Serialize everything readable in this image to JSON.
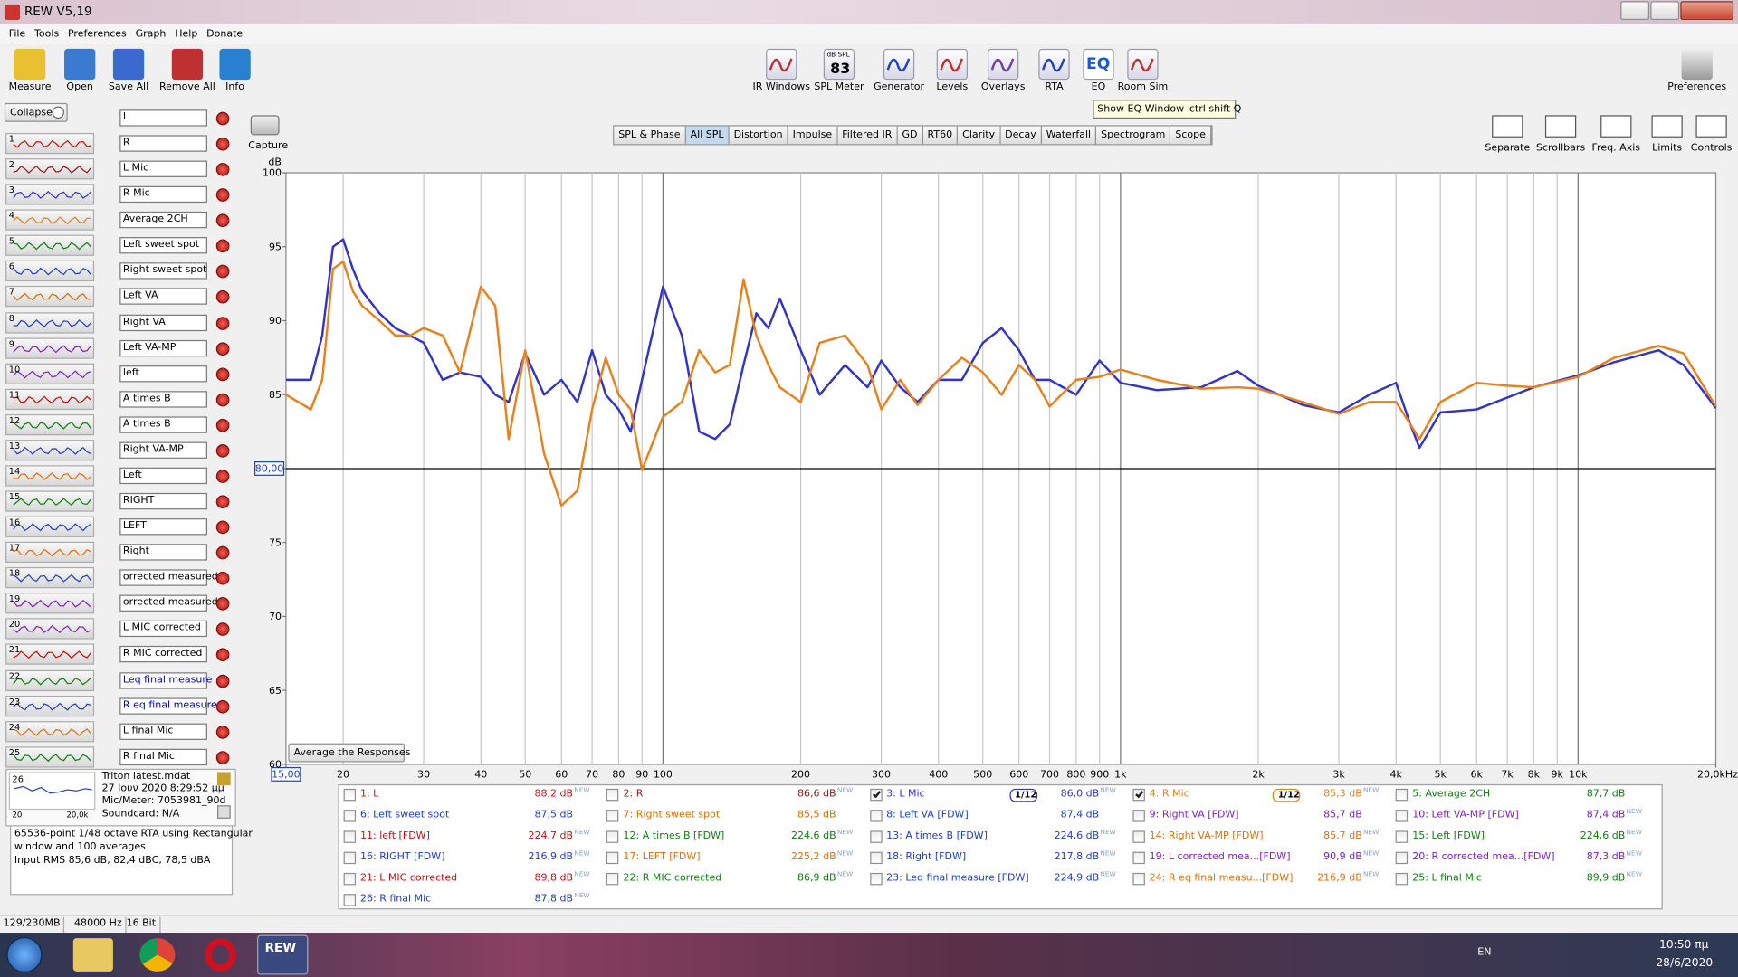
{
  "window": {
    "title": "REW V5,19"
  },
  "menu": [
    "File",
    "Tools",
    "Preferences",
    "Graph",
    "Help",
    "Donate"
  ],
  "toolbar": {
    "left": [
      "Measure",
      "Open",
      "Save All",
      "Remove All",
      "Info"
    ],
    "center": [
      "IR Windows",
      "SPL Meter",
      "Generator",
      "Levels",
      "Overlays",
      "RTA",
      "EQ",
      "Room Sim"
    ],
    "right": "Preferences",
    "spl_icon": {
      "unit": "dB SPL",
      "reading": "83"
    },
    "eq_icon": "EQ",
    "tooltip": {
      "text": "Show EQ Window",
      "shortcut": "ctrl shift Q"
    }
  },
  "sidebar": {
    "collapse": "Collapse",
    "measurements": [
      {
        "number": 1,
        "name": "L"
      },
      {
        "number": 2,
        "name": "R"
      },
      {
        "number": 3,
        "name": "L Mic"
      },
      {
        "number": 4,
        "name": "R Mic"
      },
      {
        "number": 5,
        "name": "Average 2CH"
      },
      {
        "number": 6,
        "name": "Left  sweet spot"
      },
      {
        "number": 7,
        "name": "Right sweet spot"
      },
      {
        "number": 8,
        "name": "Left VA"
      },
      {
        "number": 9,
        "name": "Right VA"
      },
      {
        "number": 10,
        "name": "Left VA-MP"
      },
      {
        "number": 11,
        "name": "left"
      },
      {
        "number": 12,
        "name": "A times B"
      },
      {
        "number": 13,
        "name": "A times B"
      },
      {
        "number": 14,
        "name": "Right VA-MP"
      },
      {
        "number": 15,
        "name": "Left"
      },
      {
        "number": 16,
        "name": "RIGHT"
      },
      {
        "number": 17,
        "name": "LEFT"
      },
      {
        "number": 18,
        "name": "Right"
      },
      {
        "number": 19,
        "name": "orrected measured"
      },
      {
        "number": 20,
        "name": "orrected measured"
      },
      {
        "number": 21,
        "name": "L MIC corrected"
      },
      {
        "number": 22,
        "name": "R MIC corrected"
      },
      {
        "number": 23,
        "name": "Leq final measure"
      },
      {
        "number": 24,
        "name": "R eq final measure"
      },
      {
        "number": 25,
        "name": "L final Mic"
      },
      {
        "number": 26,
        "name": "R final Mic"
      }
    ],
    "selected": {
      "file": "Triton latest.mdat",
      "date": "27 Ιουν 2020 8:29:52 μμ",
      "mic": "Mic/Meter: 7053981_90d",
      "soundcard": "Soundcard: N/A",
      "axis_start": "20",
      "axis_end": "20,0k"
    },
    "notes": [
      "65536-point 1/48 octave RTA using Rectangular",
      "window and 100 averages",
      "Input RMS 85,6 dB, 82,4 dBC, 78,5 dBA"
    ]
  },
  "graph": {
    "capture": "Capture",
    "tabs": [
      "SPL & Phase",
      "All SPL",
      "Distortion",
      "Impulse",
      "Filtered IR",
      "GD",
      "RT60",
      "Clarity",
      "Decay",
      "Waterfall",
      "Spectrogram",
      "Scope"
    ],
    "active_tab": 1,
    "controls": [
      "Separate",
      "Scrollbars",
      "Freq. Axis",
      "Limits",
      "Controls"
    ],
    "average_button": "Average the Responses"
  },
  "chart_data": {
    "type": "line",
    "y_unit": "dB",
    "xscale": "log",
    "x": [
      15,
      17,
      18,
      19,
      20,
      21,
      22,
      24,
      26,
      28,
      30,
      33,
      36,
      40,
      43,
      46,
      50,
      55,
      60,
      65,
      70,
      75,
      80,
      85,
      90,
      100,
      110,
      120,
      130,
      140,
      150,
      160,
      170,
      180,
      200,
      220,
      250,
      280,
      300,
      330,
      360,
      400,
      450,
      500,
      550,
      600,
      650,
      700,
      800,
      900,
      1000,
      1200,
      1500,
      1800,
      2000,
      2500,
      3000,
      3500,
      4000,
      4300,
      4500,
      5000,
      6000,
      7000,
      8000,
      10000,
      12000,
      15000,
      17000,
      20000
    ],
    "series": [
      {
        "name": "3: L Mic",
        "color": "#3232cc",
        "values": [
          86.0,
          86.0,
          89,
          95,
          95.5,
          93.5,
          92,
          90.5,
          89.5,
          89,
          88.5,
          86,
          86.5,
          86.2,
          85,
          84.5,
          87.8,
          85,
          86,
          84.5,
          88,
          85,
          84,
          82.5,
          86,
          92.3,
          89,
          82.5,
          82,
          83,
          87,
          90.5,
          89.5,
          91.5,
          88,
          85,
          87,
          85.5,
          87.3,
          85.5,
          84.5,
          86,
          86,
          88.5,
          89.5,
          88,
          86,
          86,
          85,
          87.3,
          85.8,
          85.3,
          85.5,
          86.6,
          85.6,
          84.3,
          83.8,
          85,
          85.8,
          83,
          81.4,
          83.8,
          84,
          84.8,
          85.5,
          86.3,
          87.2,
          88,
          87,
          84.1
        ]
      },
      {
        "name": "4: R Mic",
        "color": "#e8801c",
        "values": [
          85,
          84,
          86,
          93.5,
          94,
          92,
          91,
          90,
          89,
          89,
          89.5,
          89,
          86.5,
          92.3,
          91,
          82,
          88,
          81,
          77.5,
          78.5,
          84,
          87.5,
          85,
          84,
          79.9,
          83.5,
          84.5,
          88,
          86.5,
          87,
          92.8,
          89,
          87,
          85.5,
          84.5,
          88.5,
          89,
          87,
          84,
          86,
          84.3,
          86,
          87.5,
          86.5,
          85,
          87,
          86,
          84.2,
          86,
          86.2,
          86.7,
          86,
          85.4,
          85.5,
          85.4,
          84.5,
          83.7,
          84.5,
          84.5,
          83,
          82,
          84.5,
          85.8,
          85.6,
          85.5,
          86.2,
          87.5,
          88.3,
          87.8,
          84.2
        ]
      }
    ],
    "xlim": [
      15,
      20000
    ],
    "ylim": [
      60,
      100
    ],
    "xticks": [
      {
        "value": 15,
        "label": "15,00"
      },
      20,
      30,
      40,
      50,
      60,
      70,
      80,
      90,
      100,
      200,
      300,
      400,
      500,
      600,
      700,
      800,
      900,
      {
        "value": 1000,
        "label": "1k"
      },
      {
        "value": 2000,
        "label": "2k"
      },
      {
        "value": 3000,
        "label": "3k"
      },
      {
        "value": 4000,
        "label": "4k"
      },
      {
        "value": 5000,
        "label": "5k"
      },
      {
        "value": 6000,
        "label": "6k"
      },
      {
        "value": 7000,
        "label": "7k"
      },
      {
        "value": 8000,
        "label": "8k"
      },
      {
        "value": 9000,
        "label": "9k"
      },
      {
        "value": 10000,
        "label": "10k"
      },
      {
        "value": 20000,
        "label": "20,0kHz"
      }
    ],
    "yticks": [
      60,
      65,
      70,
      75,
      80,
      85,
      90,
      95,
      100
    ],
    "vertical_grid": true,
    "reference_line": {
      "value": 80,
      "label": "80,00"
    }
  },
  "legend": {
    "new_badge": "NEW",
    "entries": [
      {
        "name": "1: L",
        "value": "88,2 dB",
        "new": true,
        "color": "#d01010"
      },
      {
        "name": "2: R",
        "value": "86,6 dB",
        "new": true,
        "color": "#8b1a1a"
      },
      {
        "series": 0,
        "checked": true,
        "smoothing": "1/12",
        "value": "86,0 dB",
        "new": true
      },
      {
        "series": 1,
        "checked": true,
        "smoothing": "1/12",
        "value": "85,3 dB",
        "new": true
      },
      {
        "name": "5: Average 2CH",
        "value": "87,7 dB",
        "new": false,
        "color": "#108010"
      },
      {
        "name": "6: Left  sweet spot",
        "value": "87,5 dB",
        "new": false,
        "color": "#2040c0"
      },
      {
        "name": "7: Right sweet spot",
        "value": "85,5 dB",
        "new": false,
        "color": "#d07000"
      },
      {
        "name": "8: Left VA [FDW]",
        "value": "87,4 dB",
        "new": false,
        "color": "#2040c0"
      },
      {
        "name": "9: Right VA [FDW]",
        "value": "85,7 dB",
        "new": false,
        "color": "#8020c0"
      },
      {
        "name": "10: Left VA-MP [FDW]",
        "value": "87,4 dB",
        "new": true,
        "color": "#8020c0"
      },
      {
        "name": "11: left [FDW]",
        "value": "224,7 dB",
        "new": true,
        "color": "#c01010"
      },
      {
        "name": "12: A times B [FDW]",
        "value": "224,6 dB",
        "new": true,
        "color": "#108010"
      },
      {
        "name": "13: A times B [FDW]",
        "value": "224,6 dB",
        "new": true,
        "color": "#2040c0"
      },
      {
        "name": "14: Right VA-MP [FDW]",
        "value": "85,7 dB",
        "new": true,
        "color": "#e07010"
      },
      {
        "name": "15: Left [FDW]",
        "value": "224,6 dB",
        "new": true,
        "color": "#108010"
      },
      {
        "name": "16: RIGHT [FDW]",
        "value": "216,9 dB",
        "new": true,
        "color": "#2040c0"
      },
      {
        "name": "17: LEFT [FDW]",
        "value": "225,2 dB",
        "new": true,
        "color": "#e07010"
      },
      {
        "name": "18: Right [FDW]",
        "value": "217,8 dB",
        "new": true,
        "color": "#2040c0"
      },
      {
        "name": "19: L corrected mea...[FDW]",
        "value": "90,9 dB",
        "new": true,
        "color": "#8020c0"
      },
      {
        "name": "20: R corrected mea...[FDW]",
        "value": "87,3 dB",
        "new": true,
        "color": "#8020c0"
      },
      {
        "name": "21: L MIC corrected",
        "value": "89,8 dB",
        "new": true,
        "color": "#c01010"
      },
      {
        "name": "22: R MIC corrected",
        "value": "86,9 dB",
        "new": true,
        "color": "#108010"
      },
      {
        "name": "23: Leq final measure [FDW]",
        "value": "224,9 dB",
        "new": true,
        "color": "#2040c0"
      },
      {
        "name": "24: R eq final measu...[FDW]",
        "value": "216,9 dB",
        "new": true,
        "color": "#e07010"
      },
      {
        "name": "25: L final Mic",
        "value": "89,9 dB",
        "new": true,
        "color": "#108010"
      },
      {
        "name": "26: R final Mic",
        "value": "87,8 dB",
        "new": true,
        "color": "#2040c0"
      }
    ]
  },
  "status_bar": [
    "129/230MB",
    "48000 Hz",
    "16 Bit"
  ],
  "taskbar": {
    "app": "REW",
    "language": "EN",
    "time": "10:50 πμ",
    "date": "28/6/2020"
  }
}
